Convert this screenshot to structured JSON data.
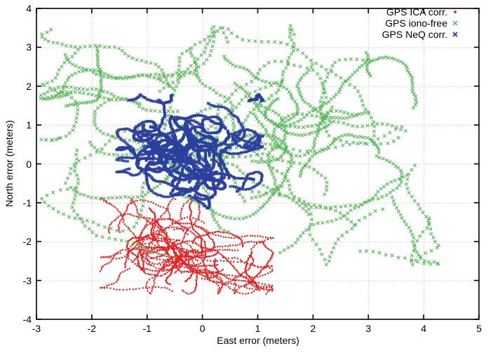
{
  "figure": {
    "background": "#ffffff",
    "frame_color": "#000000",
    "grid_color": "#b8b8b8",
    "text_color": "#000000"
  },
  "chart_data": {
    "type": "scatter",
    "title": "",
    "xlabel": "East error (meters)",
    "ylabel": "North error (meters)",
    "xlim": [
      -3,
      5
    ],
    "ylim": [
      -4,
      4
    ],
    "x_ticks": [
      -3,
      -2,
      -1,
      0,
      1,
      2,
      3,
      4,
      5
    ],
    "y_ticks": [
      -4,
      -3,
      -2,
      -1,
      0,
      1,
      2,
      3,
      4
    ],
    "grid": "dotted",
    "legend_position": "top-right-inside",
    "series": [
      {
        "name": "GPS ICA corr.",
        "color": "#e62020",
        "marker": "dot",
        "approx_points": 1900,
        "cluster": {
          "seed": 11,
          "center": [
            -0.32,
            -2.22
          ],
          "sigma": [
            0.55,
            0.38
          ],
          "tilt": -0.35,
          "x_range": [
            -1.85,
            1.28
          ],
          "y_range": [
            -3.35,
            -0.88
          ],
          "tracks": 48,
          "track_len": 40,
          "track_step": 0.042,
          "outlier_tracks": [
            [
              -1.6,
              -1.75
            ],
            [
              1.0,
              -2.2
            ],
            [
              -1.45,
              -2.6
            ]
          ]
        }
      },
      {
        "name": "GPS iono-free",
        "color": "#54b854",
        "marker": "cross",
        "approx_points": 1620,
        "cluster": {
          "seed": 7,
          "center": [
            0.35,
            0.55
          ],
          "sigma": [
            1.35,
            0.95
          ],
          "tilt": 0,
          "x_range": [
            -2.92,
            4.3
          ],
          "y_range": [
            -2.6,
            3.55
          ],
          "tracks": 45,
          "track_len": 36,
          "track_step": 0.09,
          "outlier_tracks": [
            [
              3.2,
              0.3
            ],
            [
              3.9,
              0.0
            ],
            [
              3.3,
              -1.4
            ],
            [
              1.6,
              -2.3
            ],
            [
              -1.8,
              3.1
            ],
            [
              0.2,
              3.3
            ],
            [
              -2.4,
              2.8
            ]
          ]
        }
      },
      {
        "name": "GPS NeQ corr.",
        "color": "#2b3f9e",
        "marker": "cross-small",
        "approx_points": 2700,
        "cluster": {
          "seed": 23,
          "center": [
            -0.28,
            0.3
          ],
          "sigma": [
            0.45,
            0.45
          ],
          "tilt": 0.1,
          "x_range": [
            -1.55,
            1.1
          ],
          "y_range": [
            -1.15,
            1.78
          ],
          "tracks": 58,
          "track_len": 46,
          "track_step": 0.026,
          "outlier_tracks": [
            [
              0.85,
              -0.75
            ],
            [
              0.8,
              1.55
            ],
            [
              -1.3,
              1.3
            ],
            [
              -0.9,
              1.6
            ]
          ]
        }
      }
    ]
  }
}
